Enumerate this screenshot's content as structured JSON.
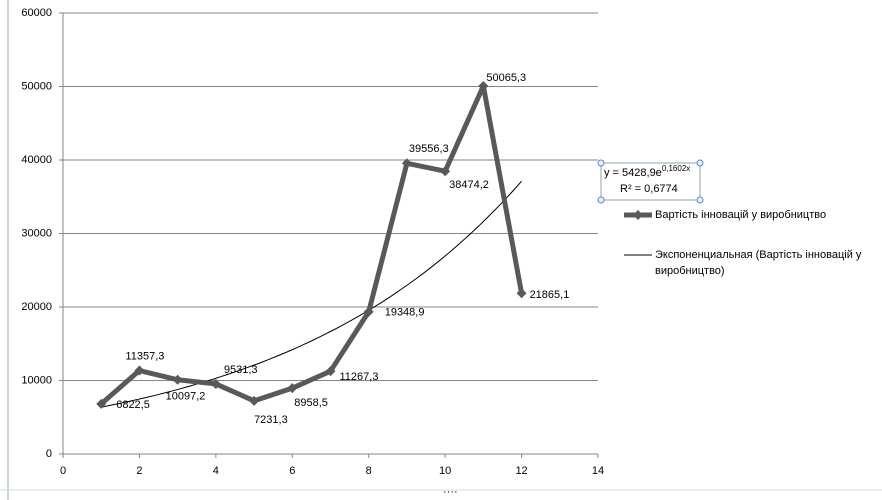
{
  "chart_data": {
    "type": "line",
    "x": [
      1,
      2,
      3,
      4,
      5,
      6,
      7,
      8,
      9,
      10,
      11,
      12
    ],
    "series": [
      {
        "name": "Вартість інновацій  у виробництво",
        "color": "#595959",
        "values": [
          6822.5,
          11357.3,
          10097.2,
          9531.3,
          7231.3,
          8958.5,
          11267.3,
          19348.9,
          39556.3,
          38474.2,
          50065.3,
          21865.1
        ],
        "value_labels": [
          "6822,5",
          "11357,3",
          "10097,2",
          "9531,3",
          "7231,3",
          "8958,5",
          "11267,3",
          "19348,9",
          "39556,3",
          "38474,2",
          "50065,3",
          "21865,1"
        ]
      }
    ],
    "trendline": {
      "name": "Экспоненциальная (Вартість інновацій  у виробництво)",
      "color": "#000000",
      "coefficients": [
        5428.9,
        0.1602
      ],
      "equation": "y = 5428,9e",
      "exponent": "0,1602x",
      "r2": "R² = 0,6774"
    },
    "xlim": [
      0,
      14
    ],
    "xticks": [
      0,
      2,
      4,
      6,
      8,
      10,
      12,
      14
    ],
    "ylim": [
      0,
      60000
    ],
    "yticks": [
      0,
      10000,
      20000,
      30000,
      40000,
      50000,
      60000
    ],
    "grid": true
  }
}
